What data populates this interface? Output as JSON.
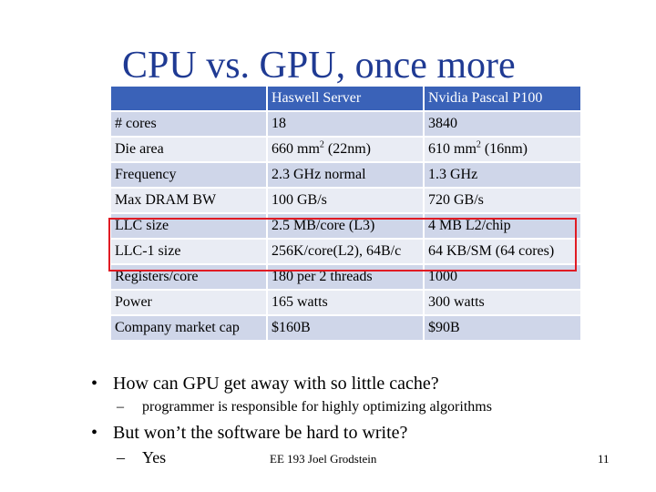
{
  "slide": {
    "title": "CPU vs. GPU, once more",
    "table": {
      "header": [
        "",
        "Haswell Server",
        "Nvidia Pascal P100"
      ],
      "rows": [
        {
          "label": "# cores",
          "haswell": "18",
          "pascal": "3840"
        },
        {
          "label": "Die area",
          "haswell": "660 mm",
          "haswell_sup": "2",
          "haswell_after": " (22nm)",
          "pascal": "610 mm",
          "pascal_sup": "2",
          "pascal_after": " (16nm)"
        },
        {
          "label": "Frequency",
          "haswell": "2.3 GHz normal",
          "pascal": "1.3 GHz"
        },
        {
          "label": "Max DRAM BW",
          "haswell": "100 GB/s",
          "pascal": "720 GB/s"
        },
        {
          "label": "LLC size",
          "haswell": "2.5 MB/core (L3)",
          "pascal": "4 MB L2/chip"
        },
        {
          "label": "LLC-1 size",
          "haswell": "256K/core(L2), 64B/c",
          "pascal": "64 KB/SM (64 cores)"
        },
        {
          "label": "Registers/core",
          "haswell": "180 per 2 threads",
          "pascal": "1000"
        },
        {
          "label": "Power",
          "haswell": "165 watts",
          "pascal": "300 watts"
        },
        {
          "label": "Company market cap",
          "haswell": "$160B",
          "pascal": "$90B"
        }
      ]
    },
    "bullets": [
      {
        "text": "How can GPU get away with so little cache?",
        "sub": "programmer is responsible for highly optimizing algorithms"
      },
      {
        "text": "But won’t the software be hard to write?",
        "sub": "Yes"
      }
    ],
    "bullet_glyph": "•",
    "sub_glyph": "–",
    "footer": "EE 193 Joel Grodstein",
    "page_number": "11",
    "colors": {
      "title": "#1f3a93",
      "header_bg": "#3a62b8",
      "row_dark": "#cfd6e9",
      "row_light": "#e9ecf4",
      "highlight_box": "#e01b24"
    }
  }
}
